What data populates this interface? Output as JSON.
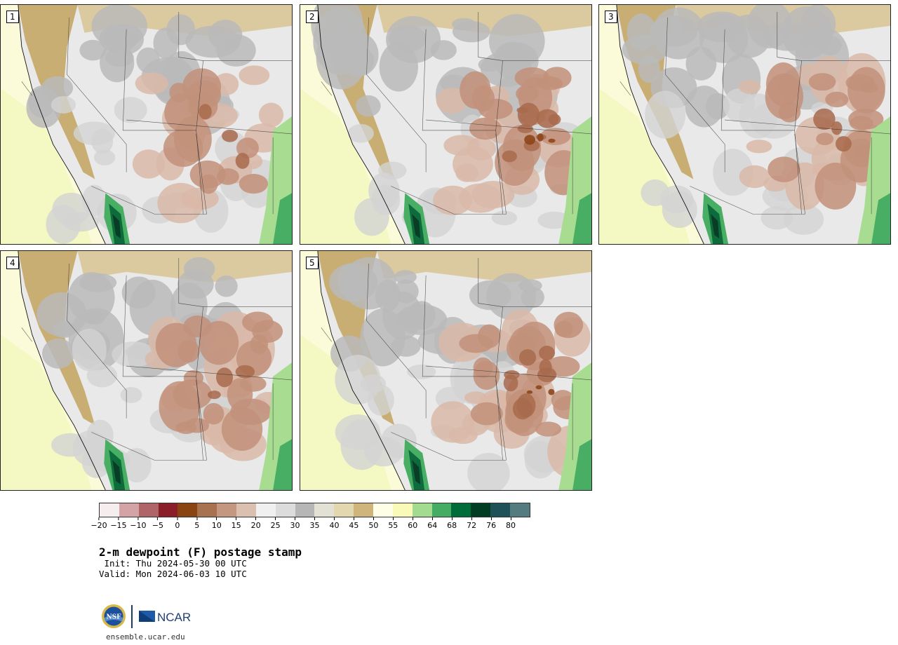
{
  "panels": [
    {
      "label": "1"
    },
    {
      "label": "2"
    },
    {
      "label": "3"
    },
    {
      "label": "4"
    },
    {
      "label": "5"
    }
  ],
  "colorbar": {
    "colors": [
      "#f6eeee",
      "#d4a3a6",
      "#b06468",
      "#8a1f2a",
      "#8a4412",
      "#a87250",
      "#c49880",
      "#dbc0b0",
      "#f0f0f0",
      "#dcdcdc",
      "#b6b6b6",
      "#e3e1d3",
      "#e3d7b0",
      "#cfb47c",
      "#fefee6",
      "#fafab8",
      "#a3dc90",
      "#45ad63",
      "#006c3a",
      "#003d23",
      "#1e5258",
      "#537b80"
    ],
    "ticks": [
      "−20",
      "−15",
      "−10",
      "−5",
      "0",
      "5",
      "10",
      "15",
      "20",
      "25",
      "30",
      "35",
      "40",
      "45",
      "50",
      "55",
      "60",
      "64",
      "68",
      "72",
      "76",
      "80"
    ]
  },
  "title": "2-m dewpoint (F) postage stamp",
  "init_text": " Init: Thu 2024-05-30 00 UTC",
  "valid_text": "Valid: Mon 2024-06-03 10 UTC",
  "logos": {
    "nsf": "NSF",
    "ncar": "NCAR"
  },
  "site": "ensemble.ucar.edu"
}
